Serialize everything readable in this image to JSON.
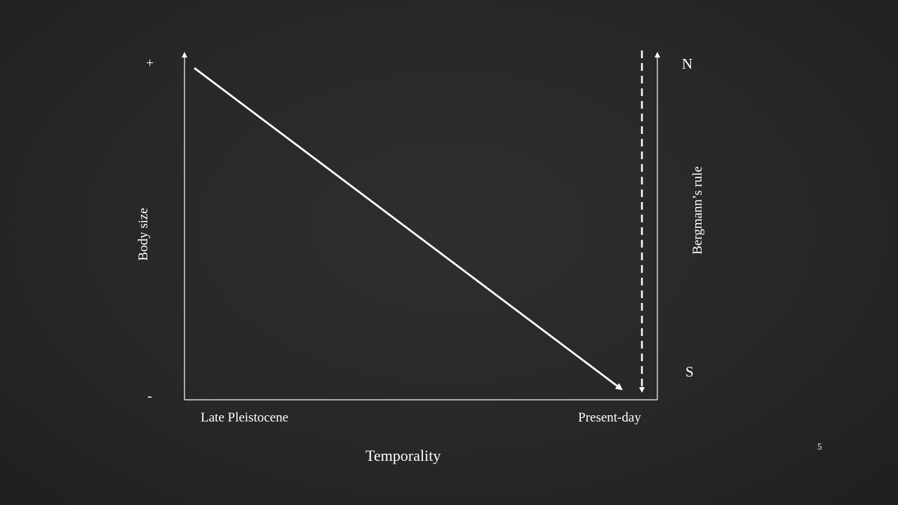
{
  "y_axis": {
    "title": "Body size",
    "top_sign": "+",
    "bottom_sign": "-"
  },
  "x_axis": {
    "title": "Temporality",
    "start_label": "Late Pleistocene",
    "end_label": "Present-day"
  },
  "right_axis": {
    "title": "Bergmann’s rule",
    "top_label": "N",
    "bottom_label": "S"
  },
  "page_number": "5",
  "colors": {
    "background": "#2a2a2a",
    "lines": "#ffffff"
  }
}
